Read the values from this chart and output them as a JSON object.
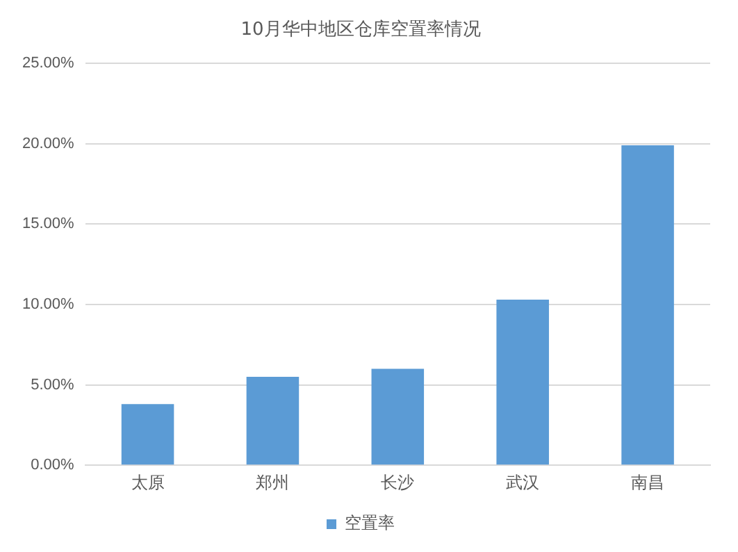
{
  "chart_data": {
    "type": "bar",
    "title": "10月华中地区仓库空置率情况",
    "categories": [
      "太原",
      "郑州",
      "长沙",
      "武汉",
      "南昌"
    ],
    "series": [
      {
        "name": "空置率",
        "color": "#5b9bd5",
        "values": [
          3.8,
          5.5,
          6.0,
          10.3,
          19.9
        ]
      }
    ],
    "ylim": [
      0,
      25
    ],
    "yticks": [
      {
        "value": 0,
        "label": "0.00%"
      },
      {
        "value": 5,
        "label": "5.00%"
      },
      {
        "value": 10,
        "label": "10.00%"
      },
      {
        "value": 15,
        "label": "15.00%"
      },
      {
        "value": 20,
        "label": "20.00%"
      },
      {
        "value": 25,
        "label": "25.00%"
      }
    ],
    "grid": "y",
    "legend": "bottom"
  }
}
